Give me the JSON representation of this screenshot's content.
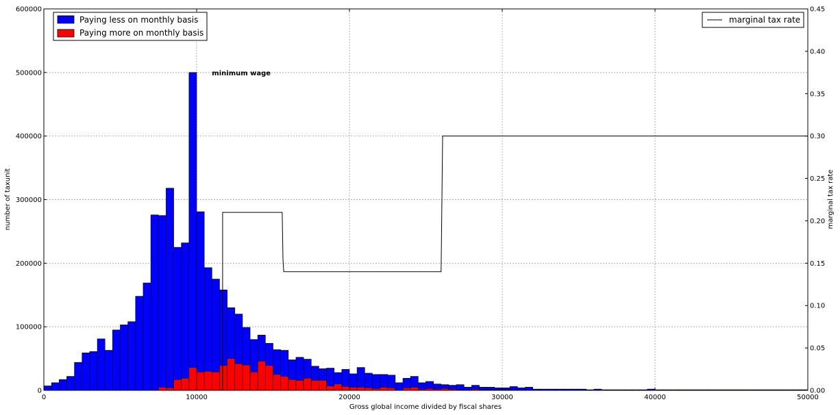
{
  "chart_data": {
    "type": "bar",
    "title": "",
    "xlabel": "Gross global income divided by fiscal shares",
    "ylabel": "number of taxunit",
    "y2label": "marginal tax rate",
    "xlim": [
      0,
      50000
    ],
    "ylim": [
      0,
      600000
    ],
    "y2lim": [
      0,
      0.45
    ],
    "grid": true,
    "x_ticks": [
      "0",
      "10000",
      "20000",
      "30000",
      "40000",
      "50000"
    ],
    "y_ticks": [
      "0",
      "100000",
      "200000",
      "300000",
      "400000",
      "500000",
      "600000"
    ],
    "y2_ticks": [
      "0.00",
      "0.05",
      "0.10",
      "0.15",
      "0.20",
      "0.25",
      "0.30",
      "0.35",
      "0.40",
      "0.45"
    ],
    "bin_width": 500,
    "series": [
      {
        "name": "Paying less on monthly basis",
        "color": "#0000ff",
        "values": [
          7000,
          12000,
          17000,
          22000,
          44000,
          59000,
          61000,
          81000,
          63000,
          95000,
          103000,
          108000,
          148000,
          169000,
          276000,
          275000,
          318000,
          225000,
          232000,
          500000,
          281000,
          193000,
          175000,
          158000,
          130000,
          120000,
          99000,
          80000,
          87000,
          74000,
          64000,
          63000,
          48000,
          52000,
          49000,
          38000,
          34000,
          35000,
          28000,
          33000,
          26000,
          36000,
          27000,
          25000,
          25000,
          24000,
          12000,
          19000,
          22000,
          12000,
          14000,
          10000,
          9000,
          8000,
          9000,
          5000,
          8000,
          5000,
          5000,
          4000,
          4000,
          6000,
          4000,
          5000,
          2000,
          2000,
          2000,
          2000,
          2000,
          2000,
          2000,
          1000,
          2000,
          1000,
          1000,
          1000,
          1000,
          1000,
          1000,
          2000,
          1000,
          1000,
          1000,
          1000,
          1000,
          1000,
          1000,
          1000,
          1000,
          1000,
          1000,
          1000,
          1000,
          1000,
          1000,
          1000,
          1000,
          1000,
          1000,
          1000
        ]
      },
      {
        "name": "Paying more on monthly basis",
        "color": "#ff0000",
        "values": [
          0,
          0,
          0,
          0,
          0,
          0,
          0,
          0,
          0,
          0,
          0,
          0,
          0,
          0,
          0,
          5000,
          4000,
          17000,
          19000,
          36000,
          29000,
          30000,
          29000,
          39000,
          50000,
          42000,
          40000,
          29000,
          46000,
          39000,
          25000,
          22000,
          17000,
          16000,
          19000,
          16000,
          16000,
          7000,
          10000,
          6000,
          5000,
          5000,
          4000,
          3000,
          5000,
          4000,
          0,
          4000,
          5000,
          2000,
          3000,
          2000,
          3000,
          2000,
          1000,
          0,
          2000,
          1000,
          1000,
          1000,
          1000,
          1000,
          0,
          0,
          0,
          0,
          0,
          0,
          0,
          0,
          0,
          0,
          0,
          0,
          0,
          0,
          0,
          0,
          0,
          0,
          0,
          0,
          0,
          0,
          0,
          0,
          0,
          0,
          0,
          0,
          0,
          0,
          0,
          0,
          0,
          0,
          0,
          0,
          0,
          0
        ]
      }
    ],
    "line_series": {
      "name": "marginal tax rate",
      "color": "#000000",
      "x": [
        11700,
        11700,
        12000,
        15600,
        15650,
        15700,
        26000,
        26100,
        50000
      ],
      "y": [
        0.0,
        0.21,
        0.21,
        0.21,
        0.155,
        0.14,
        0.14,
        0.3,
        0.3
      ]
    },
    "annotations": [
      {
        "text": "minimum wage",
        "x": 11000,
        "y": 500000
      }
    ],
    "legend_left_placement": "top-left",
    "legend_right_placement": "top-right"
  }
}
